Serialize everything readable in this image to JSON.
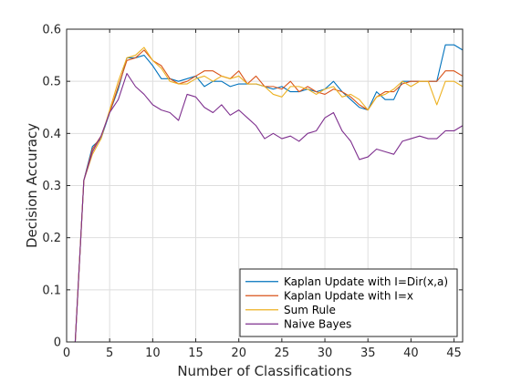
{
  "chart_data": {
    "type": "line",
    "title": "",
    "xlabel": "Number of Classifications",
    "ylabel": "Decision Accuracy",
    "xlim": [
      0,
      46
    ],
    "ylim": [
      0,
      0.6
    ],
    "xticks": [
      0,
      5,
      10,
      15,
      20,
      25,
      30,
      35,
      40,
      45
    ],
    "yticks": [
      0,
      0.1,
      0.2,
      0.3,
      0.4,
      0.5,
      0.6
    ],
    "xtick_labels": [
      "0",
      "5",
      "10",
      "15",
      "20",
      "25",
      "30",
      "35",
      "40",
      "45"
    ],
    "ytick_labels": [
      "0",
      "0.1",
      "0.2",
      "0.3",
      "0.4",
      "0.5",
      "0.6"
    ],
    "grid": true,
    "legend_position": "bottom-right",
    "series": [
      {
        "name": "Kaplan Update with I=Dir(x,a)",
        "color": "#0072BD",
        "x": [
          1,
          2,
          3,
          4,
          5,
          6,
          7,
          8,
          9,
          10,
          11,
          12,
          13,
          14,
          15,
          16,
          17,
          18,
          19,
          20,
          21,
          22,
          23,
          24,
          25,
          26,
          27,
          28,
          29,
          30,
          31,
          32,
          33,
          34,
          35,
          36,
          37,
          38,
          39,
          40,
          41,
          42,
          43,
          44,
          45,
          46
        ],
        "y": [
          0,
          0.31,
          0.375,
          0.39,
          0.44,
          0.485,
          0.545,
          0.545,
          0.55,
          0.53,
          0.505,
          0.505,
          0.5,
          0.505,
          0.51,
          0.49,
          0.5,
          0.5,
          0.49,
          0.495,
          0.495,
          0.495,
          0.49,
          0.485,
          0.49,
          0.48,
          0.48,
          0.485,
          0.48,
          0.485,
          0.5,
          0.48,
          0.465,
          0.45,
          0.445,
          0.48,
          0.465,
          0.465,
          0.5,
          0.5,
          0.5,
          0.5,
          0.5,
          0.57,
          0.57,
          0.56
        ]
      },
      {
        "name": "Kaplan Update with I=x",
        "color": "#D95319",
        "x": [
          1,
          2,
          3,
          4,
          5,
          6,
          7,
          8,
          9,
          10,
          11,
          12,
          13,
          14,
          15,
          16,
          17,
          18,
          19,
          20,
          21,
          22,
          23,
          24,
          25,
          26,
          27,
          28,
          29,
          30,
          31,
          32,
          33,
          34,
          35,
          36,
          37,
          38,
          39,
          40,
          41,
          42,
          43,
          44,
          45,
          46
        ],
        "y": [
          0,
          0.31,
          0.37,
          0.395,
          0.44,
          0.49,
          0.54,
          0.545,
          0.56,
          0.54,
          0.53,
          0.505,
          0.495,
          0.5,
          0.51,
          0.52,
          0.52,
          0.51,
          0.505,
          0.52,
          0.495,
          0.51,
          0.49,
          0.49,
          0.485,
          0.5,
          0.48,
          0.49,
          0.48,
          0.475,
          0.485,
          0.48,
          0.47,
          0.455,
          0.445,
          0.47,
          0.48,
          0.48,
          0.495,
          0.5,
          0.5,
          0.5,
          0.5,
          0.52,
          0.52,
          0.51
        ]
      },
      {
        "name": "Sum Rule",
        "color": "#EDB120",
        "x": [
          1,
          2,
          3,
          4,
          5,
          6,
          7,
          8,
          9,
          10,
          11,
          12,
          13,
          14,
          15,
          16,
          17,
          18,
          19,
          20,
          21,
          22,
          23,
          24,
          25,
          26,
          27,
          28,
          29,
          30,
          31,
          32,
          33,
          34,
          35,
          36,
          37,
          38,
          39,
          40,
          41,
          42,
          43,
          44,
          45,
          46
        ],
        "y": [
          0,
          0.31,
          0.36,
          0.39,
          0.445,
          0.5,
          0.545,
          0.55,
          0.565,
          0.54,
          0.525,
          0.5,
          0.495,
          0.495,
          0.505,
          0.51,
          0.5,
          0.51,
          0.505,
          0.51,
          0.495,
          0.495,
          0.49,
          0.475,
          0.47,
          0.49,
          0.49,
          0.485,
          0.475,
          0.485,
          0.49,
          0.47,
          0.475,
          0.465,
          0.445,
          0.47,
          0.475,
          0.485,
          0.5,
          0.49,
          0.5,
          0.5,
          0.455,
          0.5,
          0.5,
          0.49
        ]
      },
      {
        "name": "Naive Bayes",
        "color": "#7E2F8E",
        "x": [
          1,
          2,
          3,
          4,
          5,
          6,
          7,
          8,
          9,
          10,
          11,
          12,
          13,
          14,
          15,
          16,
          17,
          18,
          19,
          20,
          21,
          22,
          23,
          24,
          25,
          26,
          27,
          28,
          29,
          30,
          31,
          32,
          33,
          34,
          35,
          36,
          37,
          38,
          39,
          40,
          41,
          42,
          43,
          44,
          45,
          46
        ],
        "y": [
          0,
          0.31,
          0.365,
          0.395,
          0.44,
          0.465,
          0.515,
          0.49,
          0.475,
          0.455,
          0.445,
          0.44,
          0.425,
          0.475,
          0.47,
          0.45,
          0.44,
          0.455,
          0.435,
          0.445,
          0.43,
          0.415,
          0.39,
          0.4,
          0.39,
          0.395,
          0.385,
          0.4,
          0.405,
          0.43,
          0.44,
          0.405,
          0.385,
          0.35,
          0.355,
          0.37,
          0.365,
          0.36,
          0.385,
          0.39,
          0.395,
          0.39,
          0.39,
          0.405,
          0.405,
          0.415
        ]
      }
    ]
  }
}
